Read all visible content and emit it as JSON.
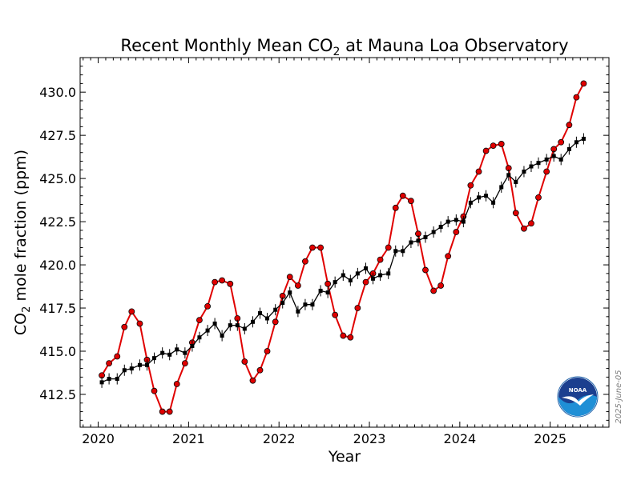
{
  "chart_data": {
    "type": "line",
    "title": "Recent Monthly Mean CO",
    "title_sub": "2",
    "title_rest": " at Mauna Loa Observatory",
    "xlabel": "Year",
    "ylabel_prefix": "CO",
    "ylabel_sub": "2",
    "ylabel_rest": " mole fraction (ppm)",
    "xlim": [
      2019.8,
      2025.65
    ],
    "ylim": [
      410.6,
      432.0
    ],
    "x_ticks": [
      {
        "value": 2020,
        "label": "2020"
      },
      {
        "value": 2021,
        "label": "2021"
      },
      {
        "value": 2022,
        "label": "2022"
      },
      {
        "value": 2023,
        "label": "2023"
      },
      {
        "value": 2024,
        "label": "2024"
      },
      {
        "value": 2025,
        "label": "2025"
      }
    ],
    "y_ticks": [
      {
        "value": 412.5,
        "label": "412.5"
      },
      {
        "value": 415.0,
        "label": "415.0"
      },
      {
        "value": 417.5,
        "label": "417.5"
      },
      {
        "value": 420.0,
        "label": "420.0"
      },
      {
        "value": 422.5,
        "label": "422.5"
      },
      {
        "value": 425.0,
        "label": "425.0"
      },
      {
        "value": 427.5,
        "label": "427.5"
      },
      {
        "value": 430.0,
        "label": "430.0"
      }
    ],
    "grid": false,
    "legend": "none",
    "date_stamp": "2025-June-05",
    "logo_text": "NOAA",
    "series": [
      {
        "color": "#e00000",
        "marker_fill": "#e00000",
        "x": [
          2020.04,
          2020.12,
          2020.21,
          2020.29,
          2020.37,
          2020.46,
          2020.54,
          2020.62,
          2020.71,
          2020.79,
          2020.87,
          2020.96,
          2021.04,
          2021.12,
          2021.21,
          2021.29,
          2021.37,
          2021.46,
          2021.54,
          2021.62,
          2021.71,
          2021.79,
          2021.87,
          2021.96,
          2022.04,
          2022.12,
          2022.21,
          2022.29,
          2022.37,
          2022.46,
          2022.54,
          2022.62,
          2022.71,
          2022.79,
          2022.87,
          2022.96,
          2023.04,
          2023.12,
          2023.21,
          2023.29,
          2023.37,
          2023.46,
          2023.54,
          2023.62,
          2023.71,
          2023.79,
          2023.87,
          2023.96,
          2024.04,
          2024.12,
          2024.21,
          2024.29,
          2024.37,
          2024.46,
          2024.54,
          2024.62,
          2024.71,
          2024.79,
          2024.87,
          2024.96,
          2025.04,
          2025.12,
          2025.21,
          2025.29,
          2025.37
        ],
        "y": [
          413.6,
          414.3,
          414.7,
          416.4,
          417.3,
          416.6,
          414.5,
          412.7,
          411.5,
          411.5,
          413.1,
          414.3,
          415.5,
          416.8,
          417.6,
          419.0,
          419.1,
          418.9,
          416.9,
          414.4,
          413.3,
          413.9,
          415.0,
          416.7,
          418.2,
          419.3,
          418.8,
          420.2,
          421.0,
          421.0,
          418.9,
          417.1,
          415.9,
          415.8,
          417.5,
          419.0,
          419.5,
          420.3,
          421.0,
          423.3,
          424.0,
          423.7,
          421.8,
          419.7,
          418.5,
          418.8,
          420.5,
          421.9,
          422.8,
          424.6,
          425.4,
          426.6,
          426.9,
          427.0,
          425.6,
          423.0,
          422.1,
          422.4,
          423.9,
          425.4,
          426.7,
          427.1,
          428.1,
          429.7,
          430.5
        ]
      },
      {
        "color": "#000000",
        "marker_fill": "#000000",
        "x": [
          2020.04,
          2020.12,
          2020.21,
          2020.29,
          2020.37,
          2020.46,
          2020.54,
          2020.62,
          2020.71,
          2020.79,
          2020.87,
          2020.96,
          2021.04,
          2021.12,
          2021.21,
          2021.29,
          2021.37,
          2021.46,
          2021.54,
          2021.62,
          2021.71,
          2021.79,
          2021.87,
          2021.96,
          2022.04,
          2022.12,
          2022.21,
          2022.29,
          2022.37,
          2022.46,
          2022.54,
          2022.62,
          2022.71,
          2022.79,
          2022.87,
          2022.96,
          2023.04,
          2023.12,
          2023.21,
          2023.29,
          2023.37,
          2023.46,
          2023.54,
          2023.62,
          2023.71,
          2023.79,
          2023.87,
          2023.96,
          2024.04,
          2024.12,
          2024.21,
          2024.29,
          2024.37,
          2024.46,
          2024.54,
          2024.62,
          2024.71,
          2024.79,
          2024.87,
          2024.96,
          2025.04,
          2025.12,
          2025.21,
          2025.29,
          2025.37
        ],
        "y": [
          413.2,
          413.4,
          413.4,
          413.9,
          414.0,
          414.2,
          414.2,
          414.6,
          414.9,
          414.8,
          415.1,
          414.9,
          415.3,
          415.8,
          416.2,
          416.6,
          415.9,
          416.5,
          416.5,
          416.3,
          416.7,
          417.2,
          416.9,
          417.4,
          417.8,
          418.4,
          417.3,
          417.7,
          417.7,
          418.5,
          418.4,
          419.0,
          419.4,
          419.1,
          419.5,
          419.8,
          419.2,
          419.4,
          419.5,
          420.8,
          420.8,
          421.3,
          421.4,
          421.6,
          421.9,
          422.2,
          422.5,
          422.6,
          422.5,
          423.6,
          423.9,
          424.0,
          423.6,
          424.5,
          425.2,
          424.8,
          425.4,
          425.7,
          425.9,
          426.1,
          426.3,
          426.1,
          426.7,
          427.1,
          427.3
        ]
      }
    ]
  }
}
